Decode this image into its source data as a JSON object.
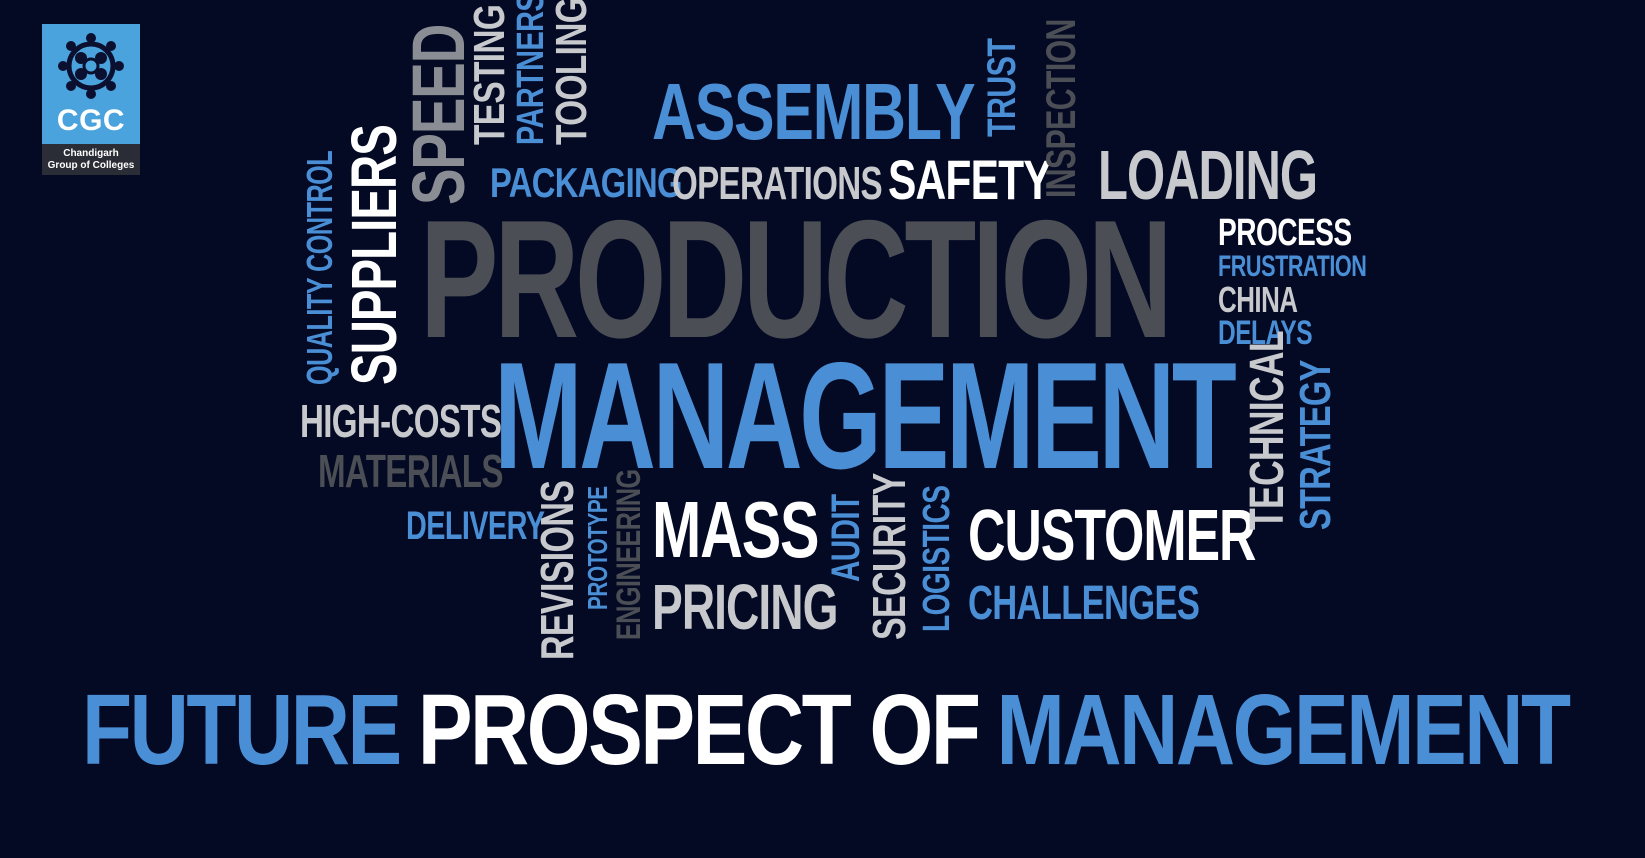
{
  "logo": {
    "acronym": "CGC",
    "line1": "Chandigarh",
    "line2": "Group of Colleges"
  },
  "words": {
    "production": "PRODUCTION",
    "management": "MANAGEMENT",
    "assembly": "ASSEMBLY",
    "testing": "TESTING",
    "partners": "PARTNERS",
    "tooling": "TOOLING",
    "speed": "SPEED",
    "trust": "TRUST",
    "inspection": "INSPECTION",
    "packaging": "PACKAGING",
    "operations": "OPERATIONS",
    "safety": "SAFETY",
    "loading": "LOADING",
    "suppliers": "SUPPLIERS",
    "quality_control": "QUALITY CONTROL",
    "process": "PROCESS",
    "frustration": "FRUSTRATION",
    "china": "CHINA",
    "delays": "DELAYS",
    "high_costs": "HIGH-COSTS",
    "materials": "MATERIALS",
    "technical": "TECHNICAL",
    "strategy": "STRATEGY",
    "delivery": "DELIVERY",
    "revisions": "REVISIONS",
    "prototype": "PROTOTYPE",
    "engineering": "ENGINEERING",
    "mass": "MASS",
    "pricing": "PRICING",
    "audit": "AUDIT",
    "security": "SECURITY",
    "logistics": "LOGISTICS",
    "customer": "CUSTOMER",
    "challenges": "CHALLENGES"
  },
  "headline": {
    "part1": "FUTURE",
    "part2": "PROSPECT OF",
    "part3": "MANAGEMENT"
  },
  "colors": {
    "background": "#040a24",
    "blue": "#4a8fd6",
    "white": "#ffffff",
    "grey": "#8a8d93",
    "dark_grey": "#4b4e54",
    "logo_blue": "#4aa3dc"
  }
}
